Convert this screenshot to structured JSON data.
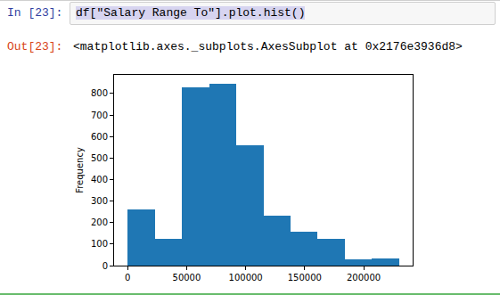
{
  "cell": {
    "in_prompt": "In [23]:",
    "code": "df[\"Salary Range To\"].plot.hist()",
    "out_prompt": "Out[23]:",
    "output": "<matplotlib.axes._subplots.AxesSubplot at 0x2176e3936d8>"
  },
  "chart_data": {
    "type": "histogram",
    "y_label": "Frequency",
    "bins": [
      0,
      23000,
      46000,
      69000,
      92000,
      115000,
      138000,
      161000,
      184000,
      207000,
      230000
    ],
    "values": [
      260,
      125,
      830,
      845,
      560,
      232,
      158,
      125,
      30,
      35
    ],
    "color": "#1f77b4",
    "xlim": [
      -11500,
      241500
    ],
    "xticks": [
      0,
      50000,
      100000,
      150000,
      200000
    ],
    "ylim": [
      0,
      887
    ],
    "yticks": [
      0,
      100,
      200,
      300,
      400,
      500,
      600,
      700,
      800
    ],
    "grid": false
  }
}
